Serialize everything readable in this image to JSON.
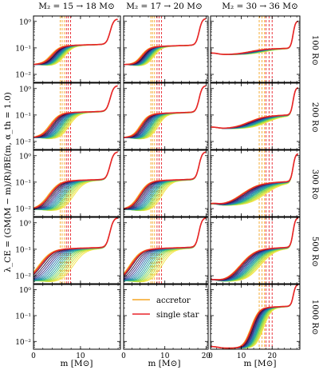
{
  "chart_data": {
    "type": "line",
    "panel_grid": "5 rows x 3 columns, shared axes",
    "column_titles": [
      "M$_2 = 15 → 18\\,M$_\\odot$",
      "",
      ""
    ],
    "column_titles_text": [
      "M₂ = 15 → 18 M⊙",
      "M₂ = 17 → 20 M⊙",
      "M₂ = 30 → 36 M⊙"
    ],
    "row_labels": [
      "100 R⊙",
      "200 R⊙",
      "300 R⊙",
      "500 R⊙",
      "1000 R⊙"
    ],
    "ylabel": "λ_CE = (GM(M − m)/R)/BE(m, α_th = 1.0)",
    "xlabel": "m [M⊙]",
    "yscale": "log",
    "ylim": [
      0.005,
      1.6
    ],
    "y_ticks": [
      0.01,
      0.1,
      1
    ],
    "y_tick_labels": [
      "10⁻²",
      "10⁻¹",
      "10⁰"
    ],
    "x_axes": [
      {
        "xlim": [
          0,
          18.5
        ],
        "ticks": [
          0,
          10
        ],
        "tick_labels": [
          "0",
          "10"
        ]
      },
      {
        "xlim": [
          0,
          20.5
        ],
        "ticks": [
          0,
          10,
          20
        ],
        "tick_labels": [
          "0",
          "10",
          "20"
        ]
      },
      {
        "xlim": [
          0,
          29
        ],
        "ticks": [
          0,
          10,
          20
        ],
        "tick_labels": [
          "0",
          "10",
          "20"
        ]
      }
    ],
    "vertical_lines": [
      {
        "col": 0,
        "orange": [
          5.7,
          6.1,
          6.6
        ],
        "red": [
          7.0,
          7.4,
          7.9
        ]
      },
      {
        "col": 1,
        "orange": [
          6.6,
          7.0,
          7.5
        ],
        "red": [
          8.1,
          8.6,
          9.2
        ]
      },
      {
        "col": 2,
        "orange": [
          15.8,
          16.7,
          17.5
        ],
        "red": [
          18.0,
          19.0,
          20.0
        ]
      }
    ],
    "legend": {
      "location": "panel row 5, column 2",
      "entries": [
        {
          "label": "accretor",
          "color": "#f5a623"
        },
        {
          "label": "single star",
          "color": "#e8242a"
        }
      ]
    },
    "empty_panels": [
      [
        4,
        0
      ],
      [
        4,
        1
      ]
    ],
    "series_colors": [
      "#30123b",
      "#3b2f80",
      "#2c5aa8",
      "#1f7ea8",
      "#21a09b",
      "#3fbf80",
      "#7fd454",
      "#c0e040",
      "#f0e442"
    ],
    "curve_model": {
      "row_0": {
        "cols": [
          {
            "x0": 5.0,
            "w": 0.9,
            "h": 1.25,
            "p": 0.12,
            "d": 0.02,
            "spread": [
              0,
              2.4
            ]
          },
          {
            "x0": 5.5,
            "w": 0.9,
            "h": 1.3,
            "p": 0.11,
            "d": 0.02,
            "spread": [
              0,
              2.6
            ]
          },
          {
            "x0": 13.5,
            "w": 2.5,
            "h": 1.05,
            "p": 0.09,
            "d": 0.055,
            "spread": [
              0,
              4.5
            ]
          }
        ]
      },
      "row_1": {
        "cols": [
          {
            "x0": 5.0,
            "w": 0.9,
            "h": 1.3,
            "p": 0.12,
            "d": 0.012,
            "spread": [
              0,
              3.6
            ]
          },
          {
            "x0": 5.5,
            "w": 0.9,
            "h": 1.3,
            "p": 0.11,
            "d": 0.012,
            "spread": [
              0,
              3.8
            ]
          },
          {
            "x0": 14.0,
            "w": 2.5,
            "h": 1.1,
            "p": 0.09,
            "d": 0.03,
            "spread": [
              0,
              5.5
            ]
          }
        ]
      },
      "row_2": {
        "cols": [
          {
            "x0": 5.0,
            "w": 1.0,
            "h": 1.4,
            "p": 0.11,
            "d": 0.008,
            "spread": [
              0,
              4.8
            ]
          },
          {
            "x0": 5.5,
            "w": 1.0,
            "h": 1.4,
            "p": 0.11,
            "d": 0.008,
            "spread": [
              0,
              5.0
            ]
          },
          {
            "x0": 13.0,
            "w": 2.5,
            "h": 1.2,
            "p": 0.09,
            "d": 0.013,
            "spread": [
              0,
              7.0
            ]
          }
        ]
      },
      "row_3": {
        "cols": [
          {
            "x0": 3.5,
            "w": 1.1,
            "h": 1.55,
            "p": 0.1,
            "d": 0.0055,
            "spread": [
              0,
              6.5
            ]
          },
          {
            "x0": 3.8,
            "w": 1.1,
            "h": 1.55,
            "p": 0.1,
            "d": 0.0055,
            "spread": [
              0,
              7.0
            ]
          },
          {
            "x0": 13.0,
            "w": 2.0,
            "h": 1.55,
            "p": 0.1,
            "d": 0.006,
            "spread": [
              0,
              6.0
            ]
          }
        ]
      },
      "row_4": {
        "cols": [
          null,
          null,
          {
            "x0": 15.5,
            "w": 1.0,
            "h": 1.6,
            "p": 0.2,
            "d": 0.0055,
            "spread": [
              0,
              3.5
            ]
          }
        ]
      }
    }
  }
}
